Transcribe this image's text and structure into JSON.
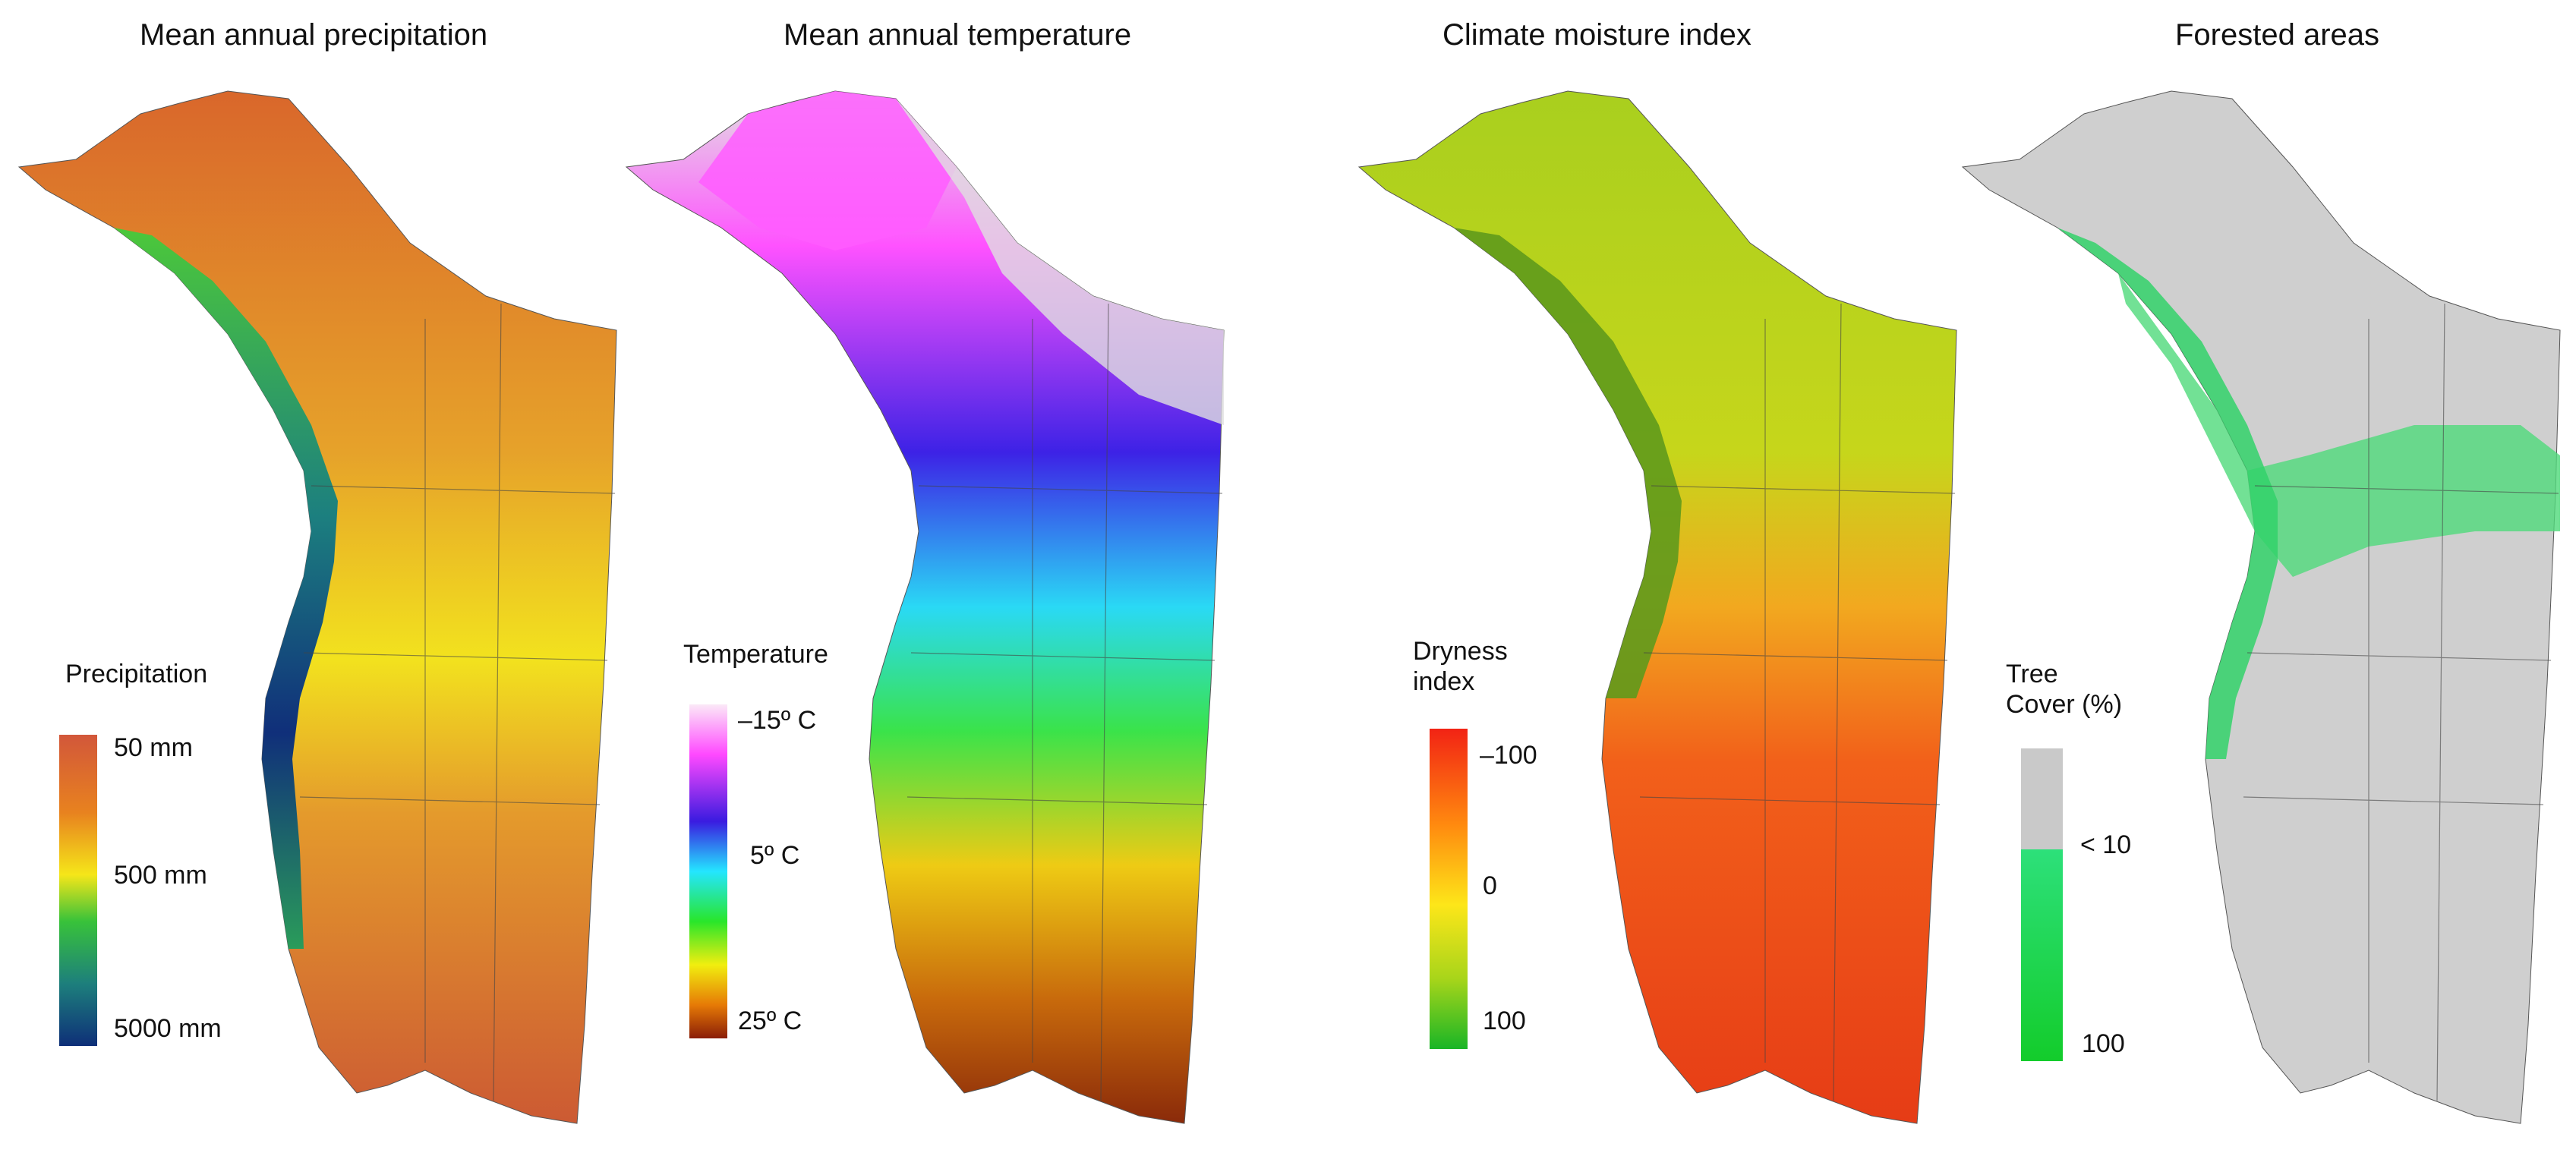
{
  "panels": [
    {
      "title": "Mean annual precipitation",
      "legend": {
        "title": "Precipitation",
        "ticks": [
          "50 mm",
          "500 mm",
          "5000 mm"
        ],
        "colors": [
          "#d2573a",
          "#e8821f",
          "#f5e619",
          "#38c23a",
          "#1d7f7c",
          "#0e2f78"
        ]
      },
      "map_colors": [
        "#d9672b",
        "#e6a22a",
        "#f2e21e",
        "#4cc83a",
        "#1c7f7f",
        "#102f7a"
      ]
    },
    {
      "title": "Mean annual temperature",
      "legend": {
        "title": "Temperature",
        "ticks": [
          "–15º C",
          "5º C",
          "25º C"
        ],
        "colors": [
          "#fbe9f7",
          "#ff49ff",
          "#3a1be0",
          "#24e6ff",
          "#29e62a",
          "#f1ee0f",
          "#e67a06",
          "#8a1d07"
        ]
      },
      "map_colors": [
        "#d6d6d6",
        "#ff52ff",
        "#3d22e6",
        "#2ad9f5",
        "#3ae34a",
        "#eecb14",
        "#c86a0c",
        "#8a2a0a"
      ]
    },
    {
      "title": "Climate moisture index",
      "legend": {
        "title": "Dryness\nindex",
        "ticks": [
          "–100",
          "0",
          "100"
        ],
        "colors": [
          "#f22314",
          "#ff8a0f",
          "#fde619",
          "#a8d51a",
          "#19b526"
        ]
      },
      "map_colors": [
        "#b8d21c",
        "#6c9e1d",
        "#f0a21f",
        "#f2561a",
        "#e23c17"
      ]
    },
    {
      "title": "Forested areas",
      "legend": {
        "title": "Tree\nCover (%)",
        "ticks": [
          "< 10",
          "100"
        ],
        "colors": [
          "#c9c9c9",
          "#2de07a",
          "#13cc2b"
        ]
      },
      "map_colors": [
        "#cfcfcf",
        "#8fe6a6",
        "#2fd46a"
      ]
    }
  ]
}
